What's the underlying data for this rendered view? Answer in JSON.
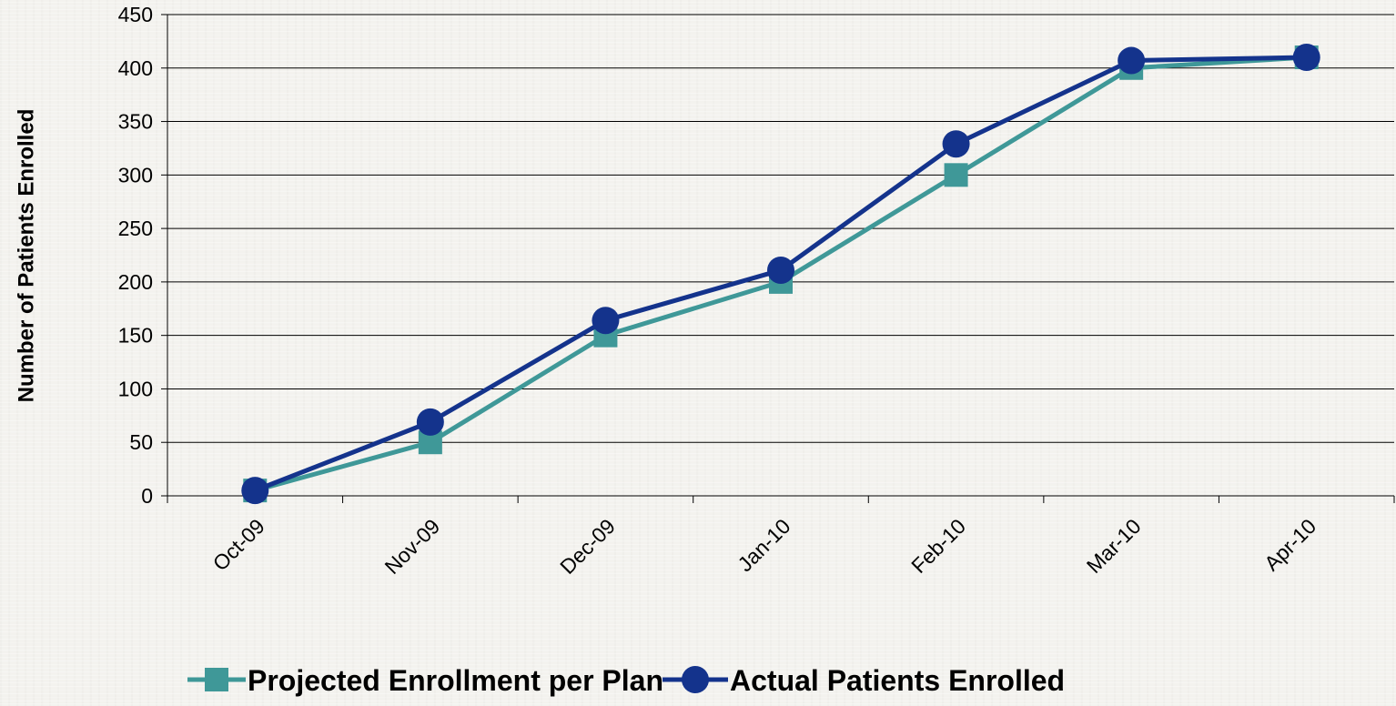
{
  "chart_data": {
    "type": "line",
    "title": "",
    "xlabel": "",
    "ylabel": "Number of Patients Enrolled",
    "categories": [
      "Oct-09",
      "Nov-09",
      "Dec-09",
      "Jan-10",
      "Feb-10",
      "Mar-10",
      "Apr-10"
    ],
    "ylim": [
      0,
      450
    ],
    "yticks": [
      0,
      50,
      100,
      150,
      200,
      250,
      300,
      350,
      400,
      450
    ],
    "grid": "horizontal",
    "legend_position": "bottom",
    "series": [
      {
        "name": "Projected Enrollment per Plan",
        "values": [
          5,
          50,
          150,
          200,
          300,
          400,
          410
        ],
        "color": "#3f9898",
        "marker": "square"
      },
      {
        "name": "Actual Patients Enrolled",
        "values": [
          5,
          69,
          164,
          211,
          329,
          407,
          410
        ],
        "color": "#14338c",
        "marker": "circle"
      }
    ]
  }
}
